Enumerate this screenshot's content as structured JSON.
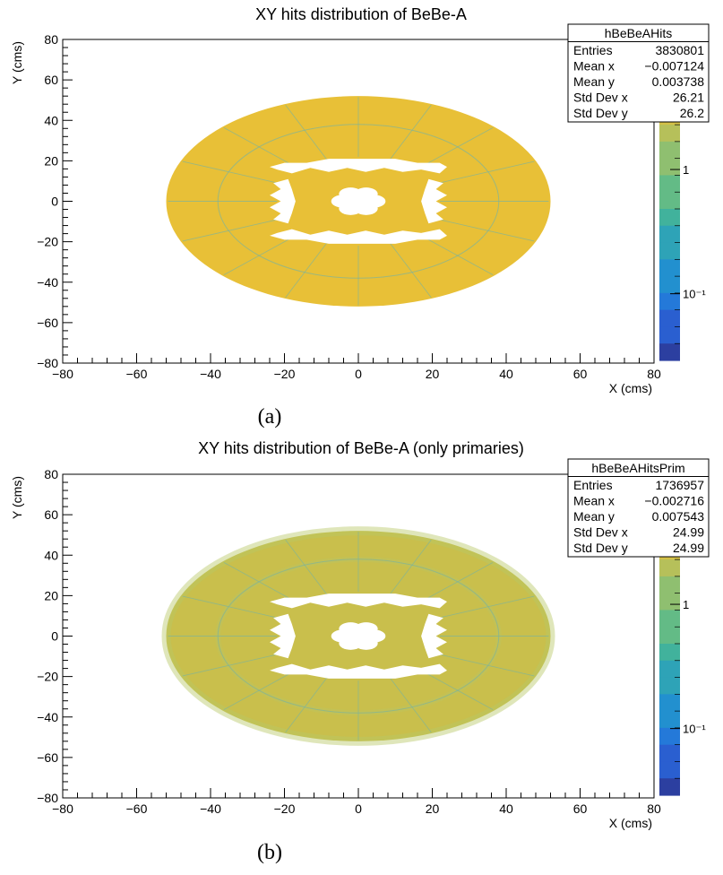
{
  "chart_data": [
    {
      "type": "heatmap",
      "title": "XY hits distribution of BeBe-A",
      "xlabel": "X (cms)",
      "ylabel": "Y (cms)",
      "xlim": [
        -80,
        80
      ],
      "ylim": [
        -80,
        80
      ],
      "x_ticks": [
        -80,
        -60,
        -40,
        -20,
        0,
        20,
        40,
        60,
        80
      ],
      "y_ticks": [
        -80,
        -60,
        -40,
        -20,
        0,
        20,
        40,
        60,
        80
      ],
      "grid": false,
      "colorbar": {
        "scale": "log",
        "labels": [
          "1",
          "10⁻¹"
        ],
        "label_values": [
          1,
          0.1
        ]
      },
      "stats": {
        "name": "hBeBeAHits",
        "rows": [
          {
            "label": "Entries",
            "value": "3830801"
          },
          {
            "label": "Mean x",
            "value": "−0.007124"
          },
          {
            "label": "Mean y",
            "value": "0.003738"
          },
          {
            "label": "Std Dev x",
            "value": "26.21"
          },
          {
            "label": "Std Dev y",
            "value": "26.2"
          }
        ]
      },
      "disk": {
        "outer_radius": 52,
        "middle_ring_radius": 38,
        "inner_radius": 22,
        "core_radius": 7,
        "sectors": 16
      },
      "fill_color": "#e8c037",
      "caption": "(a)"
    },
    {
      "type": "heatmap",
      "title": "XY hits distribution of BeBe-A (only primaries)",
      "xlabel": "X (cms)",
      "ylabel": "Y (cms)",
      "xlim": [
        -80,
        80
      ],
      "ylim": [
        -80,
        80
      ],
      "x_ticks": [
        -80,
        -60,
        -40,
        -20,
        0,
        20,
        40,
        60,
        80
      ],
      "y_ticks": [
        -80,
        -60,
        -40,
        -20,
        0,
        20,
        40,
        60,
        80
      ],
      "grid": false,
      "colorbar": {
        "scale": "log",
        "labels": [
          "1",
          "10⁻¹"
        ],
        "label_values": [
          1,
          0.1
        ]
      },
      "stats": {
        "name": "hBeBeAHitsPrim",
        "rows": [
          {
            "label": "Entries",
            "value": "1736957"
          },
          {
            "label": "Mean x",
            "value": "−0.002716"
          },
          {
            "label": "Mean y",
            "value": "0.007543"
          },
          {
            "label": "Std Dev x",
            "value": "24.99"
          },
          {
            "label": "Std Dev y",
            "value": "24.99"
          }
        ]
      },
      "disk": {
        "outer_radius": 52,
        "middle_ring_radius": 38,
        "inner_radius": 22,
        "core_radius": 7,
        "sectors": 16
      },
      "fill_color": "#c9bf4c",
      "caption": "(b)"
    }
  ],
  "colors": {
    "palette": [
      "#e6c433",
      "#d3c046",
      "#b6c05a",
      "#8fbf70",
      "#63bb86",
      "#41b29c",
      "#2ea3b7",
      "#2290cf",
      "#2479d9",
      "#2a5fd0",
      "#2c3fa0"
    ],
    "frame": "#000000",
    "background": "#ffffff"
  }
}
